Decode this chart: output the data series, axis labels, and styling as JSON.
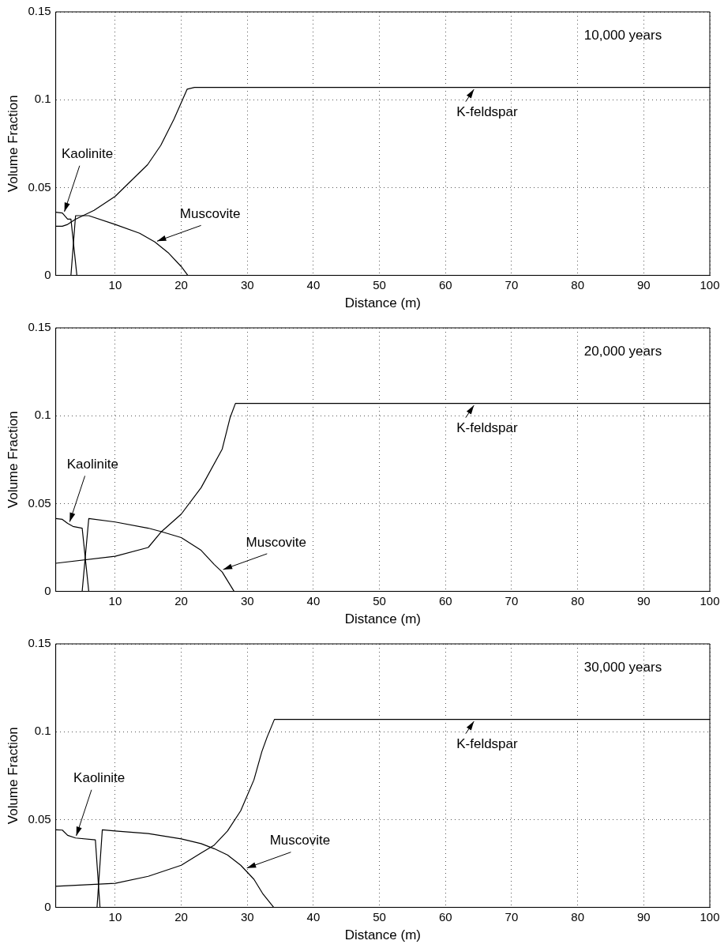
{
  "chart_data": [
    {
      "type": "line",
      "xlabel": "Distance (m)",
      "ylabel": "Volume Fraction",
      "xlim": [
        1,
        100
      ],
      "ylim": [
        0,
        0.15
      ],
      "xticks": [
        10,
        20,
        30,
        40,
        50,
        60,
        70,
        80,
        90,
        100
      ],
      "yticks": [
        0,
        0.05,
        0.1,
        0.15
      ],
      "grid": true,
      "legend": false,
      "marker": "none",
      "line_style": "solid",
      "series": [
        {
          "color": "#000000",
          "x": [
            1,
            2,
            2.8,
            4,
            6.8,
            10,
            14.9,
            16.9,
            18.9,
            20.9,
            22,
            100
          ],
          "values": [
            0.028,
            0.028,
            0.029,
            0.032,
            0.037,
            0.045,
            0.063,
            0.074,
            0.089,
            0.106,
            0.107,
            0.107
          ]
        },
        {
          "color": "#000000",
          "x": [
            1,
            2,
            2.8,
            3.3,
            4.2,
            100
          ],
          "values": [
            0.036,
            0.0355,
            0.032,
            0.032,
            0,
            0
          ]
        },
        {
          "color": "#000000",
          "x": [
            1,
            3.3,
            4,
            6,
            10,
            13.7,
            16,
            18,
            20,
            21,
            100
          ],
          "values": [
            0,
            0,
            0.034,
            0.034,
            0.029,
            0.024,
            0.019,
            0.013,
            0.005,
            0,
            0
          ]
        }
      ],
      "annotations": [
        "10,000 years",
        {
          "text": "Kaolinite",
          "x": 2.2,
          "y": 0.035
        },
        {
          "text": "Muscovite",
          "x": 16,
          "y": 0.019
        },
        {
          "text": "K-feldspar",
          "x": 64.5,
          "y": 0.107
        }
      ]
    },
    {
      "type": "line",
      "xlabel": "Distance (m)",
      "ylabel": "Volume Fraction",
      "xlim": [
        1,
        100
      ],
      "ylim": [
        0,
        0.15
      ],
      "xticks": [
        10,
        20,
        30,
        40,
        50,
        60,
        70,
        80,
        90,
        100
      ],
      "yticks": [
        0,
        0.05,
        0.1,
        0.15
      ],
      "grid": true,
      "legend": false,
      "marker": "none",
      "line_style": "solid",
      "series": [
        {
          "color": "#000000",
          "x": [
            1,
            10,
            15,
            17,
            20,
            23,
            26.2,
            27.4,
            28.2,
            100
          ],
          "values": [
            0.016,
            0.02,
            0.025,
            0.034,
            0.044,
            0.059,
            0.081,
            0.099,
            0.107,
            0.107
          ]
        },
        {
          "color": "#000000",
          "x": [
            1,
            2,
            2.8,
            3.6,
            5,
            6,
            100
          ],
          "values": [
            0.0415,
            0.041,
            0.0387,
            0.037,
            0.036,
            0,
            0
          ]
        },
        {
          "color": "#000000",
          "x": [
            1,
            5,
            6,
            10,
            15,
            17,
            20,
            23,
            25,
            26.2,
            28,
            100
          ],
          "values": [
            0,
            0,
            0.0415,
            0.0395,
            0.036,
            0.034,
            0.0306,
            0.0234,
            0.0153,
            0.011,
            0,
            0
          ]
        }
      ],
      "annotations": [
        "20,000 years",
        {
          "text": "Kaolinite",
          "x": 3,
          "y": 0.0383
        },
        {
          "text": "Muscovite",
          "x": 26,
          "y": 0.012
        },
        {
          "text": "K-feldspar",
          "x": 64.5,
          "y": 0.107
        }
      ]
    },
    {
      "type": "line",
      "xlabel": "Distance (m)",
      "ylabel": "Volume Fraction",
      "xlim": [
        1,
        100
      ],
      "ylim": [
        0,
        0.15
      ],
      "xticks": [
        10,
        20,
        30,
        40,
        50,
        60,
        70,
        80,
        90,
        100
      ],
      "yticks": [
        0,
        0.05,
        0.1,
        0.15
      ],
      "grid": true,
      "legend": false,
      "marker": "none",
      "line_style": "solid",
      "series": [
        {
          "color": "#000000",
          "x": [
            1,
            10,
            15,
            20,
            23,
            25,
            27,
            29,
            31,
            32.2,
            33,
            34.1,
            100
          ],
          "values": [
            0.012,
            0.0137,
            0.0177,
            0.024,
            0.031,
            0.0355,
            0.0435,
            0.055,
            0.0726,
            0.0887,
            0.097,
            0.107,
            0.107
          ]
        },
        {
          "color": "#000000",
          "x": [
            1,
            2,
            2.8,
            4,
            7,
            7.7,
            100
          ],
          "values": [
            0.0442,
            0.044,
            0.041,
            0.0395,
            0.0384,
            0,
            0
          ]
        },
        {
          "color": "#000000",
          "x": [
            1,
            7.25,
            8.05,
            10,
            15,
            20,
            23,
            25,
            27,
            29,
            31,
            32.3,
            34,
            100
          ],
          "values": [
            0,
            0,
            0.0442,
            0.0435,
            0.042,
            0.039,
            0.0363,
            0.0334,
            0.0298,
            0.024,
            0.016,
            0.008,
            0,
            0
          ]
        }
      ],
      "annotations": [
        "30,000 years",
        {
          "text": "Kaolinite",
          "x": 4,
          "y": 0.0395
        },
        {
          "text": "Muscovite",
          "x": 29.6,
          "y": 0.022
        },
        {
          "text": "K-feldspar",
          "x": 64.5,
          "y": 0.107
        }
      ]
    }
  ]
}
